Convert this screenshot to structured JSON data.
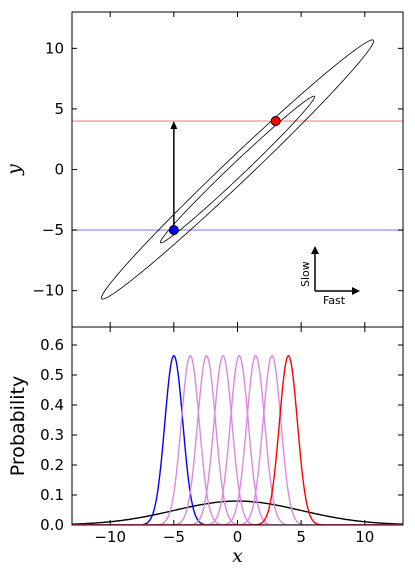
{
  "chart_data": [
    {
      "type": "line",
      "panel": "top",
      "xlabel": "x",
      "ylabel": "y",
      "xlim": [
        -13,
        13
      ],
      "ylim": [
        -13,
        13
      ],
      "yticks": [
        -10,
        -5,
        0,
        5,
        10
      ],
      "ytick_labels": [
        "−10",
        "−5",
        "0",
        "5",
        "10"
      ],
      "hlines": [
        {
          "y": 4,
          "color": "#ff9999"
        },
        {
          "y": -5,
          "color": "#9999ff"
        }
      ],
      "ellipses": [
        {
          "center": [
            0,
            0
          ],
          "angle_deg": 45,
          "semi_major": 15.1,
          "semi_minor": 1.0
        },
        {
          "center": [
            0,
            0
          ],
          "angle_deg": 45,
          "semi_major": 8.55,
          "semi_minor": 0.55
        }
      ],
      "points": [
        {
          "x": 3,
          "y": 4,
          "color": "#ff0000"
        },
        {
          "x": -5,
          "y": -5,
          "color": "#0000ff"
        }
      ],
      "arrow": {
        "from": [
          -5,
          -5
        ],
        "to": [
          -5,
          4
        ]
      },
      "direction_labels": {
        "slow": "Slow",
        "fast": "Fast"
      }
    },
    {
      "type": "line",
      "panel": "bottom",
      "xlabel": "x",
      "ylabel": "Probability",
      "xlim": [
        -13,
        13
      ],
      "ylim": [
        0,
        0.66
      ],
      "xticks": [
        -10,
        -5,
        0,
        5,
        10
      ],
      "xtick_labels": [
        "−10",
        "−5",
        "0",
        "5",
        "10"
      ],
      "yticks": [
        0.0,
        0.1,
        0.2,
        0.3,
        0.4,
        0.5,
        0.6
      ],
      "ytick_labels": [
        "0.0",
        "0.1",
        "0.2",
        "0.3",
        "0.4",
        "0.5",
        "0.6"
      ],
      "series": [
        {
          "mean": 0,
          "sd": 5,
          "color": "#000000"
        },
        {
          "mean": -5,
          "sd": 0.707,
          "color": "#0000ff"
        },
        {
          "mean": -3.71,
          "sd": 0.707,
          "color": "#dd88dd"
        },
        {
          "mean": -2.43,
          "sd": 0.707,
          "color": "#dd88dd"
        },
        {
          "mean": -1.14,
          "sd": 0.707,
          "color": "#dd88dd"
        },
        {
          "mean": 0.14,
          "sd": 0.707,
          "color": "#dd88dd"
        },
        {
          "mean": 1.43,
          "sd": 0.707,
          "color": "#dd88dd"
        },
        {
          "mean": 2.71,
          "sd": 0.707,
          "color": "#dd88dd"
        },
        {
          "mean": 4,
          "sd": 0.707,
          "color": "#ff0000"
        }
      ]
    }
  ]
}
